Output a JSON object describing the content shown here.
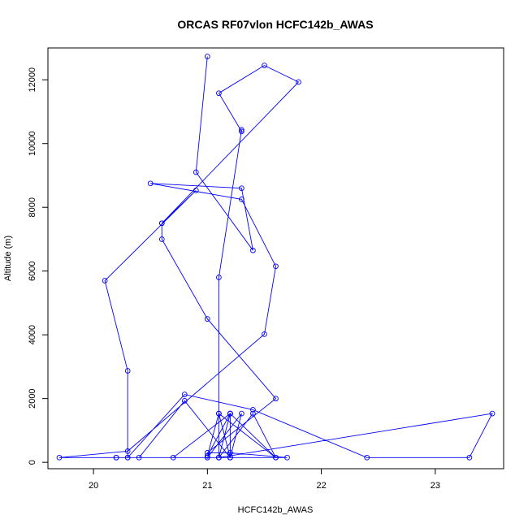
{
  "chart_data": {
    "type": "line",
    "title": "ORCAS RF07vlon HCFC142b_AWAS",
    "xlabel": "HCFC142b_AWAS",
    "ylabel": "Altitude (m)",
    "xlim": [
      19.6,
      23.6
    ],
    "ylim": [
      -200,
      13000
    ],
    "xticks": [
      20,
      21,
      22,
      23
    ],
    "yticks": [
      0,
      2000,
      4000,
      6000,
      8000,
      10000,
      12000
    ],
    "grid": false,
    "legend": "none",
    "colors": {
      "series": "#0000ff",
      "frame": "#000000"
    },
    "series": [
      {
        "points": [
          [
            21.0,
            12730
          ],
          [
            20.9,
            9100
          ],
          [
            21.4,
            6650
          ],
          [
            21.3,
            8600
          ],
          [
            20.5,
            8750
          ],
          [
            21.3,
            8250
          ],
          [
            21.6,
            6150
          ],
          [
            21.5,
            4020
          ],
          [
            20.3,
            350
          ],
          [
            19.7,
            150
          ],
          [
            21.0,
            150
          ],
          [
            21.7,
            150
          ],
          [
            21.2,
            300
          ],
          [
            21.0,
            300
          ],
          [
            21.6,
            2000
          ],
          [
            21.0,
            4500
          ],
          [
            20.6,
            7000
          ],
          [
            20.6,
            7500
          ],
          [
            21.8,
            11930
          ],
          [
            21.5,
            12450
          ],
          [
            21.1,
            11580
          ],
          [
            21.3,
            10380
          ],
          [
            21.3,
            10430
          ],
          [
            21.1,
            5800
          ],
          [
            21.1,
            150
          ],
          [
            21.2,
            1530
          ],
          [
            21.0,
            200
          ],
          [
            21.1,
            1530
          ],
          [
            21.2,
            150
          ],
          [
            21.2,
            1530
          ],
          [
            21.2,
            150
          ],
          [
            21.3,
            1530
          ],
          [
            21.0,
            150
          ],
          [
            21.1,
            150
          ],
          [
            21.4,
            1530
          ],
          [
            21.6,
            150
          ],
          [
            21.1,
            150
          ],
          [
            21.1,
            1530
          ],
          [
            21.6,
            150
          ],
          [
            21.2,
            1530
          ],
          [
            21.1,
            150
          ],
          [
            23.5,
            1530
          ],
          [
            23.3,
            150
          ],
          [
            22.4,
            150
          ],
          [
            21.4,
            1650
          ],
          [
            20.8,
            2130
          ],
          [
            20.3,
            150
          ],
          [
            20.2,
            150
          ],
          [
            20.4,
            150
          ],
          [
            20.8,
            1930
          ],
          [
            21.2,
            150
          ],
          [
            20.7,
            150
          ],
          [
            21.2,
            1530
          ],
          [
            21.2,
            150
          ],
          [
            20.2,
            150
          ],
          [
            20.3,
            150
          ],
          [
            20.3,
            2870
          ],
          [
            20.1,
            5700
          ],
          [
            20.9,
            8530
          ],
          [
            20.6,
            7500
          ]
        ]
      }
    ]
  }
}
